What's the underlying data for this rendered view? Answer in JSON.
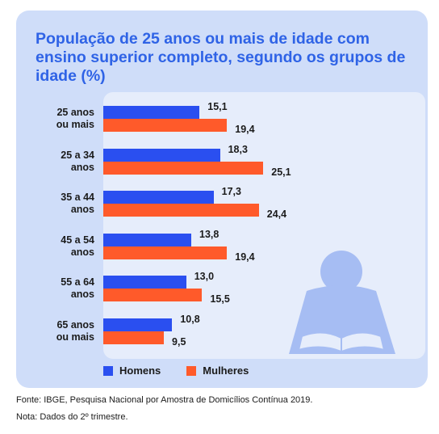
{
  "title": "População de 25 anos ou mais de idade com ensino superior completo, segundo os grupos de idade (%)",
  "colors": {
    "homens": "#2a4ff0",
    "mulheres": "#ff5a2a",
    "card": "#cfddf9",
    "panel": "#e6edfb",
    "illustration": "#a6bdf3"
  },
  "chart_data": {
    "type": "bar",
    "orientation": "horizontal",
    "categories": [
      "25 anos\nou mais",
      "25 a 34\nanos",
      "35 a 44\nanos",
      "45 a 54\nanos",
      "55 a 64\nanos",
      "65 anos\nou mais"
    ],
    "series": [
      {
        "name": "Homens",
        "values": [
          15.1,
          18.3,
          17.3,
          13.8,
          13.0,
          10.8
        ],
        "labels": [
          "15,1",
          "18,3",
          "17,3",
          "13,8",
          "13,0",
          "10,8"
        ]
      },
      {
        "name": "Mulheres",
        "values": [
          19.4,
          25.1,
          24.4,
          19.4,
          15.5,
          9.5
        ],
        "labels": [
          "19,4",
          "25,1",
          "24,4",
          "19,4",
          "15,5",
          "9,5"
        ]
      }
    ],
    "legend_position": "bottom"
  },
  "legend": {
    "homens": "Homens",
    "mulheres": "Mulheres"
  },
  "footer": {
    "source": "Fonte: IBGE, Pesquisa Nacional por Amostra de Domicílios Contínua 2019.",
    "note": "Nota: Dados do 2º trimestre."
  }
}
